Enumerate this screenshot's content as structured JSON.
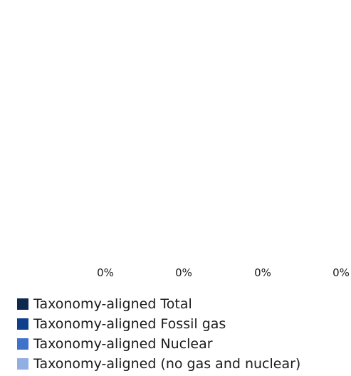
{
  "chart_data": {
    "type": "bar",
    "categories": [
      "",
      "",
      "",
      ""
    ],
    "series": [
      {
        "name": "Taxonomy-aligned Total",
        "color": "#0d2a4e",
        "values": [
          0,
          0,
          0,
          0
        ]
      },
      {
        "name": "Taxonomy-aligned Fossil gas",
        "color": "#0f3f8c",
        "values": [
          0,
          0,
          0,
          0
        ]
      },
      {
        "name": "Taxonomy-aligned Nuclear",
        "color": "#3f72c9",
        "values": [
          0,
          0,
          0,
          0
        ]
      },
      {
        "name": "Taxonomy-aligned (no gas and nuclear)",
        "color": "#92afe3",
        "values": [
          0,
          0,
          0,
          0
        ]
      }
    ],
    "data_labels": [
      "0%",
      "0%",
      "0%",
      "0%"
    ],
    "legend_position": "bottom-left",
    "grid": false
  }
}
